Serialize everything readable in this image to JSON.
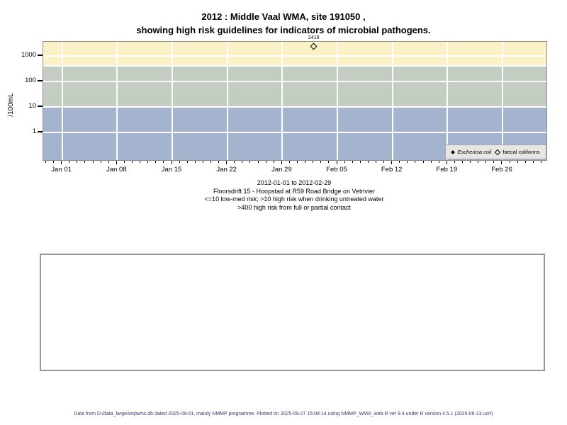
{
  "title": {
    "line1": "2012 : Middle Vaal WMA, site 191050 ,",
    "line2": "showing high risk guidelines for indicators of microbial pathogens."
  },
  "chart_data": {
    "type": "scatter",
    "title": "2012 : Middle Vaal WMA, site 191050 , showing high risk guidelines for indicators of microbial pathogens.",
    "ylabel": "/100mL",
    "y_scale": "log10",
    "y_ticks": [
      1,
      10,
      100,
      1000
    ],
    "x_tick_labels": [
      "Jan 01",
      "Jan 08",
      "Jan 15",
      "Jan 22",
      "Jan 29",
      "Feb 05",
      "Feb 12",
      "Feb 19",
      "Feb 26"
    ],
    "x_major_tick_interval_days": 7,
    "x_minor_tick_interval_days": 1,
    "x_range": "2012-01-01 to 2012-02-29",
    "grid": "white vertical weekly lines and horizontal decade lines",
    "legend_position": "bottom-right",
    "risk_bands": [
      {
        "name": "high-risk-contact",
        "range": ">400",
        "color": "#FAF2C6",
        "meaning": ">400 high risk from full or partial contact"
      },
      {
        "name": "high-risk-drinking",
        "range": ">10 to 400",
        "color": "#C4CDC1",
        "meaning": ">10 high risk when drinking untreated water"
      },
      {
        "name": "low-med-risk",
        "range": "<=10",
        "color": "#A4B4CE",
        "meaning": "<=10 low-med risk"
      }
    ],
    "band_thresholds": [
      400,
      10
    ],
    "series": [
      {
        "name": "Eschericia coli",
        "marker": "filled-diamond",
        "points": []
      },
      {
        "name": "faecal coliforms",
        "marker": "open-diamond",
        "points": [
          {
            "date": "2012-02-02",
            "day": 32,
            "value": 2419,
            "label": "2419"
          }
        ]
      }
    ]
  },
  "legend": {
    "series1": "Eschericia coli",
    "series2": "faecal coliforms"
  },
  "subtitle": {
    "line1": "2012-01-01 to 2012-02-29",
    "line2": "Floorsdrift 15 - Hoopstad at R59 Road Bridge on Vetrivier",
    "line3": "<=10 low-med risk; >10 high risk when drinking untreated water",
    "line4": ">400 high risk from full or partial contact"
  },
  "footer": {
    "text": "Data from D:/data_large/wq/wms.db dated 2025-08-01, mainly NMMP programme. Plotted on 2025-09-27 15:08:14 using NMMP_WMA_web.R ver 9.4 under R version 4.5.1 (2025-06-13 ucrt)"
  }
}
